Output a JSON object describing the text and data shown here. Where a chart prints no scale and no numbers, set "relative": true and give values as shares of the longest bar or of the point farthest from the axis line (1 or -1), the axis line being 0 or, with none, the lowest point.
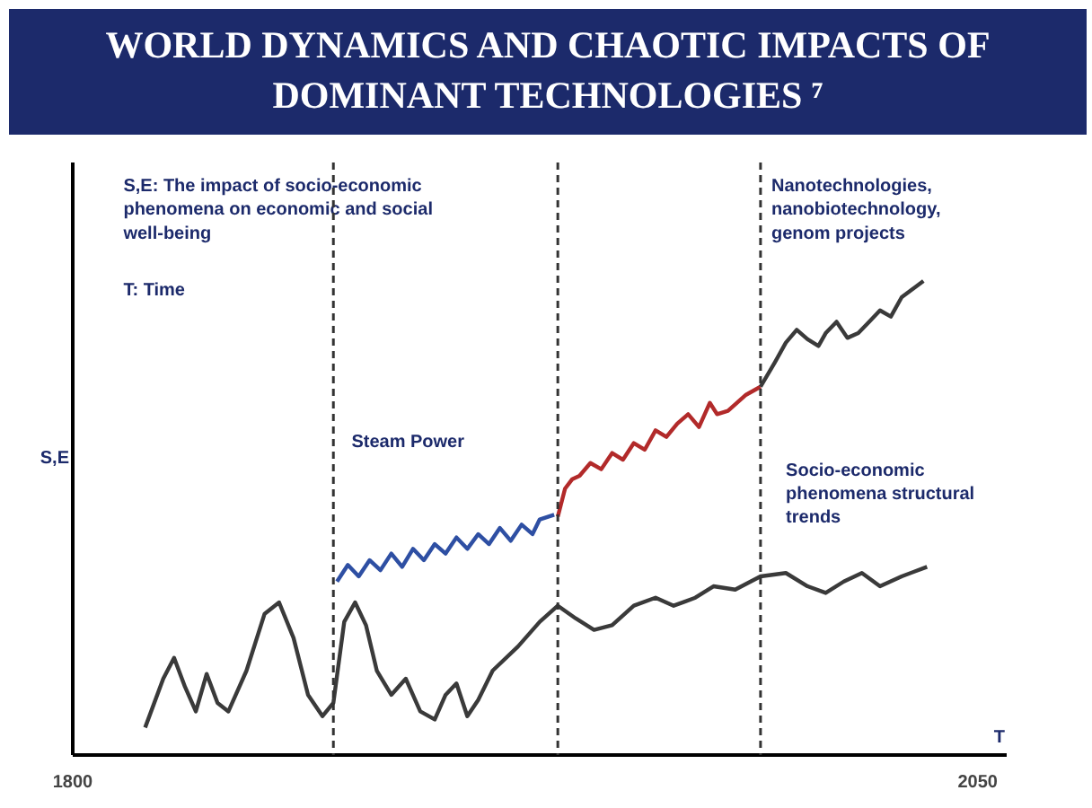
{
  "chart_data": {
    "type": "line",
    "title": "WORLD DYNAMICS AND CHAOTIC IMPACTS OF DOMINANT TECHNOLOGIES ⁷",
    "xlabel": "T",
    "ylabel": "S,E",
    "relative": true,
    "xlim": [
      1800,
      2058
    ],
    "xticks": [
      1800,
      2050
    ],
    "grid": false,
    "marker": "none",
    "line_style": "solid",
    "series": [
      {
        "color": "#3a3a3a",
        "x": [
          1820,
          1825,
          1828,
          1831,
          1834,
          1837,
          1840,
          1843,
          1848,
          1853,
          1857,
          1861,
          1865,
          1869,
          1872,
          1875,
          1878,
          1881,
          1884,
          1888,
          1892,
          1896,
          1900,
          1903,
          1906,
          1909,
          1912,
          1916,
          1923,
          1929,
          1934,
          1939,
          1944,
          1949,
          1955,
          1961,
          1966,
          1972,
          1977,
          1983,
          1990,
          1997,
          2003,
          2008,
          2013,
          2018,
          2023,
          2029,
          2036
        ],
        "values": [
          0.058,
          0.161,
          0.205,
          0.144,
          0.092,
          0.171,
          0.11,
          0.092,
          0.178,
          0.298,
          0.322,
          0.247,
          0.127,
          0.082,
          0.11,
          0.281,
          0.322,
          0.274,
          0.178,
          0.127,
          0.161,
          0.092,
          0.075,
          0.127,
          0.151,
          0.082,
          0.116,
          0.178,
          0.229,
          0.281,
          0.315,
          0.288,
          0.264,
          0.274,
          0.315,
          0.332,
          0.315,
          0.332,
          0.356,
          0.349,
          0.377,
          0.384,
          0.356,
          0.342,
          0.366,
          0.384,
          0.356,
          0.377,
          0.397
        ]
      },
      {
        "color": "#2e4fa3",
        "x": [
          1873,
          1876,
          1879,
          1882,
          1885,
          1888,
          1891,
          1894,
          1897,
          1900,
          1903,
          1906,
          1909,
          1912,
          1915,
          1918,
          1921,
          1924,
          1927,
          1929,
          1933
        ],
        "values": [
          0.366,
          0.401,
          0.377,
          0.411,
          0.39,
          0.425,
          0.397,
          0.435,
          0.411,
          0.445,
          0.425,
          0.459,
          0.435,
          0.466,
          0.445,
          0.479,
          0.452,
          0.486,
          0.466,
          0.497,
          0.507
        ]
      },
      {
        "color": "#b22a2a",
        "x": [
          1934,
          1936,
          1938,
          1940,
          1943,
          1946,
          1949,
          1952,
          1955,
          1958,
          1961,
          1964,
          1967,
          1970,
          1973,
          1976,
          1978,
          1981,
          1986,
          1990
        ],
        "values": [
          0.503,
          0.562,
          0.582,
          0.589,
          0.616,
          0.603,
          0.637,
          0.623,
          0.658,
          0.644,
          0.685,
          0.671,
          0.699,
          0.719,
          0.692,
          0.743,
          0.719,
          0.726,
          0.76,
          0.777
        ]
      },
      {
        "color": "#3a3a3a",
        "x": [
          1990,
          1994,
          1997,
          2000,
          2003,
          2006,
          2008,
          2011,
          2014,
          2017,
          2020,
          2023,
          2026,
          2029,
          2032,
          2035
        ],
        "values": [
          0.777,
          0.829,
          0.87,
          0.897,
          0.877,
          0.863,
          0.89,
          0.914,
          0.88,
          0.89,
          0.914,
          0.938,
          0.925,
          0.966,
          0.983,
          1.0
        ]
      }
    ],
    "ref_lines": [
      {
        "axis": "x",
        "value": 1872,
        "line_style": "dashed",
        "color": "#333333"
      },
      {
        "axis": "x",
        "value": 1934,
        "line_style": "dashed",
        "color": "#333333"
      },
      {
        "axis": "x",
        "value": 1990,
        "line_style": "dashed",
        "color": "#333333"
      }
    ],
    "annotations": [
      "S,E: The impact of socio-economic phenomena on economic and social well-being",
      "T:    Time",
      "Steam Power",
      "Nanotechnologies, nanobiotechnology, genom projects",
      "Socio-economic phenomena structural trends"
    ]
  }
}
